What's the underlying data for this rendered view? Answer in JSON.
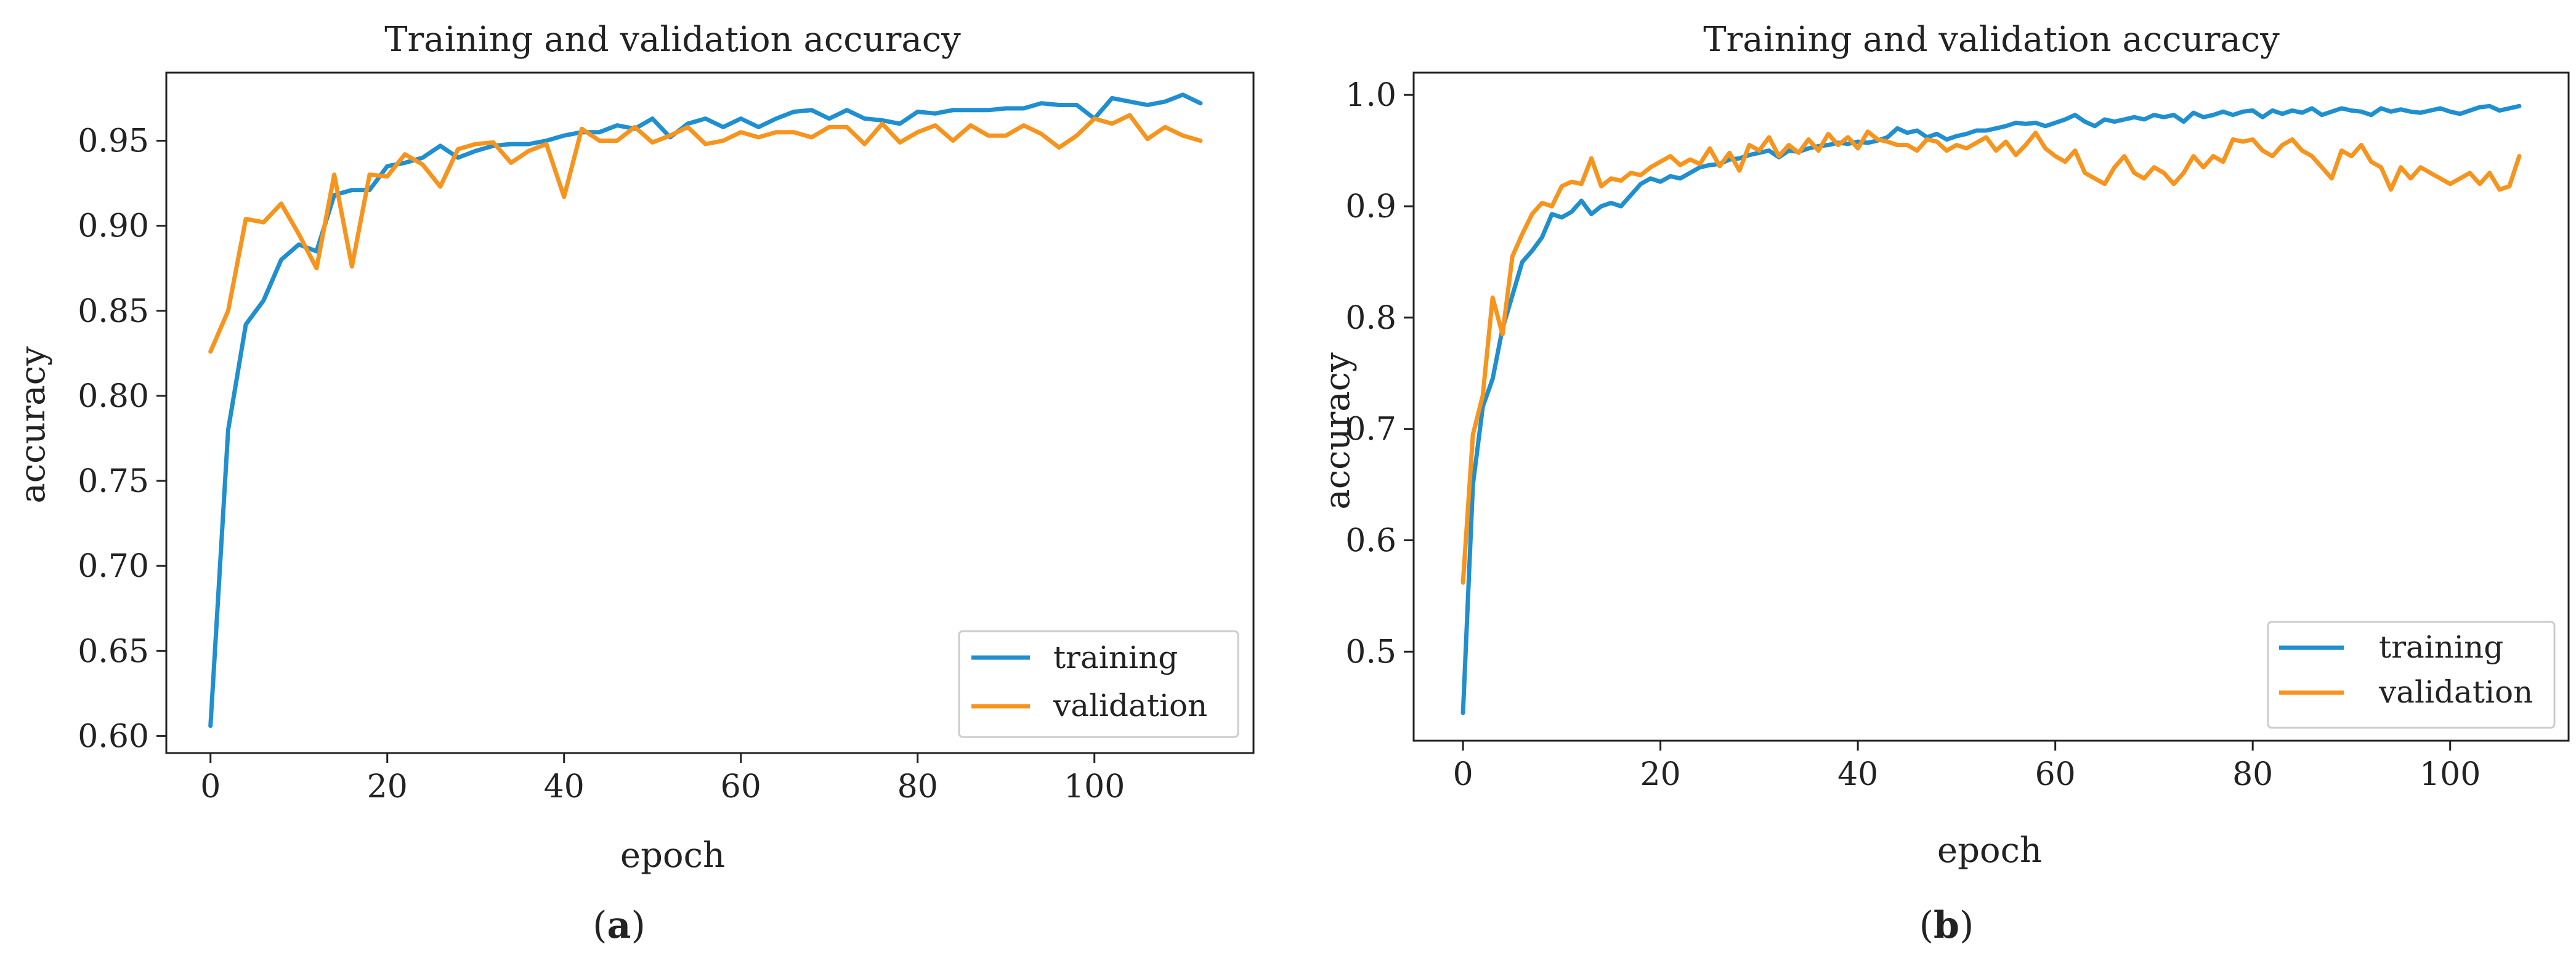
{
  "panels": [
    {
      "label_open": "(",
      "label_letter": "a",
      "label_close": ")",
      "chart_data": {
        "type": "line",
        "title": "Training and validation accuracy",
        "xlabel": "epoch",
        "ylabel": "accuracy",
        "xlim": [
          -5,
          118
        ],
        "ylim": [
          0.59,
          0.99
        ],
        "xticks": [
          0,
          20,
          40,
          60,
          80,
          100
        ],
        "xtick_labels": [
          "0",
          "20",
          "40",
          "60",
          "80",
          "100"
        ],
        "yticks": [
          0.6,
          0.65,
          0.7,
          0.75,
          0.8,
          0.85,
          0.9,
          0.95
        ],
        "ytick_labels": [
          "0.60",
          "0.65",
          "0.70",
          "0.75",
          "0.80",
          "0.85",
          "0.90",
          "0.95"
        ],
        "legend_position": "lower-right",
        "x": [
          0,
          2,
          4,
          6,
          8,
          10,
          12,
          14,
          16,
          18,
          20,
          22,
          24,
          26,
          28,
          30,
          32,
          34,
          36,
          38,
          40,
          42,
          44,
          46,
          48,
          50,
          52,
          54,
          56,
          58,
          60,
          62,
          64,
          66,
          68,
          70,
          72,
          74,
          76,
          78,
          80,
          82,
          84,
          86,
          88,
          90,
          92,
          94,
          96,
          98,
          100,
          102,
          104,
          106,
          108,
          110,
          112
        ],
        "series": [
          {
            "name": "training",
            "color": "#1f8fcf",
            "values": [
              0.606,
              0.78,
              0.842,
              0.856,
              0.88,
              0.889,
              0.885,
              0.918,
              0.921,
              0.921,
              0.935,
              0.937,
              0.94,
              0.947,
              0.94,
              0.944,
              0.947,
              0.948,
              0.948,
              0.95,
              0.953,
              0.955,
              0.955,
              0.959,
              0.957,
              0.963,
              0.952,
              0.96,
              0.963,
              0.958,
              0.963,
              0.958,
              0.963,
              0.967,
              0.968,
              0.963,
              0.968,
              0.963,
              0.962,
              0.96,
              0.967,
              0.966,
              0.968,
              0.968,
              0.968,
              0.969,
              0.969,
              0.972,
              0.971,
              0.971,
              0.963,
              0.975,
              0.973,
              0.971,
              0.973,
              0.977,
              0.972
            ]
          },
          {
            "name": "validation",
            "color": "#f7941d",
            "values": [
              0.826,
              0.85,
              0.904,
              0.902,
              0.913,
              0.895,
              0.875,
              0.93,
              0.876,
              0.93,
              0.929,
              0.942,
              0.936,
              0.923,
              0.945,
              0.948,
              0.949,
              0.937,
              0.944,
              0.948,
              0.917,
              0.957,
              0.95,
              0.95,
              0.958,
              0.949,
              0.953,
              0.958,
              0.948,
              0.95,
              0.955,
              0.952,
              0.955,
              0.955,
              0.952,
              0.958,
              0.958,
              0.948,
              0.96,
              0.949,
              0.955,
              0.959,
              0.95,
              0.959,
              0.953,
              0.953,
              0.959,
              0.954,
              0.946,
              0.953,
              0.963,
              0.96,
              0.965,
              0.951,
              0.958,
              0.953,
              0.95
            ]
          }
        ]
      }
    },
    {
      "label_open": "(",
      "label_letter": "b",
      "label_close": ")",
      "chart_data": {
        "type": "line",
        "title": "Training and validation accuracy",
        "xlabel": "epoch",
        "ylabel": "accuracy",
        "xlim": [
          -5,
          112
        ],
        "ylim": [
          0.42,
          1.02
        ],
        "xticks": [
          0,
          20,
          40,
          60,
          80,
          100
        ],
        "xtick_labels": [
          "0",
          "20",
          "40",
          "60",
          "80",
          "100"
        ],
        "yticks": [
          0.5,
          0.6,
          0.7,
          0.8,
          0.9,
          1.0
        ],
        "ytick_labels": [
          "0.5",
          "0.6",
          "0.7",
          "0.8",
          "0.9",
          "1.0"
        ],
        "legend_position": "lower-right",
        "x": [
          0,
          1,
          2,
          3,
          4,
          5,
          6,
          7,
          8,
          9,
          10,
          11,
          12,
          13,
          14,
          15,
          16,
          17,
          18,
          19,
          20,
          21,
          22,
          23,
          24,
          25,
          26,
          27,
          28,
          29,
          30,
          31,
          32,
          33,
          34,
          35,
          36,
          37,
          38,
          39,
          40,
          41,
          42,
          43,
          44,
          45,
          46,
          47,
          48,
          49,
          50,
          51,
          52,
          53,
          54,
          55,
          56,
          57,
          58,
          59,
          60,
          61,
          62,
          63,
          64,
          65,
          66,
          67,
          68,
          69,
          70,
          71,
          72,
          73,
          74,
          75,
          76,
          77,
          78,
          79,
          80,
          81,
          82,
          83,
          84,
          85,
          86,
          87,
          88,
          89,
          90,
          91,
          92,
          93,
          94,
          95,
          96,
          97,
          98,
          99,
          100,
          101,
          102,
          103,
          104,
          105,
          106,
          107
        ],
        "series": [
          {
            "name": "training",
            "color": "#1f8fcf",
            "values": [
              0.445,
              0.65,
              0.72,
              0.745,
              0.79,
              0.82,
              0.85,
              0.86,
              0.872,
              0.893,
              0.89,
              0.895,
              0.905,
              0.893,
              0.9,
              0.903,
              0.9,
              0.91,
              0.92,
              0.925,
              0.922,
              0.927,
              0.925,
              0.93,
              0.935,
              0.937,
              0.938,
              0.942,
              0.943,
              0.946,
              0.948,
              0.95,
              0.944,
              0.95,
              0.949,
              0.952,
              0.954,
              0.955,
              0.957,
              0.956,
              0.958,
              0.957,
              0.959,
              0.962,
              0.97,
              0.966,
              0.968,
              0.962,
              0.965,
              0.96,
              0.963,
              0.965,
              0.968,
              0.968,
              0.97,
              0.972,
              0.975,
              0.974,
              0.975,
              0.972,
              0.975,
              0.978,
              0.982,
              0.976,
              0.972,
              0.978,
              0.976,
              0.978,
              0.98,
              0.978,
              0.982,
              0.98,
              0.982,
              0.976,
              0.984,
              0.98,
              0.982,
              0.985,
              0.982,
              0.985,
              0.986,
              0.98,
              0.986,
              0.983,
              0.986,
              0.984,
              0.988,
              0.982,
              0.985,
              0.988,
              0.986,
              0.985,
              0.982,
              0.988,
              0.985,
              0.987,
              0.985,
              0.984,
              0.986,
              0.988,
              0.985,
              0.983,
              0.986,
              0.989,
              0.99,
              0.986,
              0.988,
              0.99
            ]
          },
          {
            "name": "validation",
            "color": "#f7941d",
            "values": [
              0.562,
              0.695,
              0.73,
              0.818,
              0.785,
              0.855,
              0.875,
              0.893,
              0.903,
              0.9,
              0.918,
              0.922,
              0.92,
              0.943,
              0.918,
              0.925,
              0.923,
              0.93,
              0.928,
              0.935,
              0.94,
              0.945,
              0.937,
              0.942,
              0.938,
              0.952,
              0.936,
              0.948,
              0.932,
              0.955,
              0.95,
              0.962,
              0.945,
              0.955,
              0.948,
              0.96,
              0.95,
              0.965,
              0.955,
              0.962,
              0.952,
              0.967,
              0.96,
              0.958,
              0.955,
              0.955,
              0.95,
              0.96,
              0.958,
              0.95,
              0.955,
              0.952,
              0.957,
              0.962,
              0.95,
              0.958,
              0.946,
              0.955,
              0.966,
              0.952,
              0.945,
              0.94,
              0.95,
              0.93,
              0.925,
              0.92,
              0.935,
              0.945,
              0.93,
              0.925,
              0.935,
              0.93,
              0.92,
              0.93,
              0.945,
              0.935,
              0.945,
              0.94,
              0.96,
              0.958,
              0.96,
              0.95,
              0.945,
              0.955,
              0.96,
              0.95,
              0.945,
              0.935,
              0.925,
              0.95,
              0.945,
              0.955,
              0.94,
              0.935,
              0.915,
              0.935,
              0.925,
              0.935,
              0.93,
              0.925,
              0.92,
              0.925,
              0.93,
              0.92,
              0.93,
              0.915,
              0.918,
              0.945
            ]
          }
        ]
      }
    }
  ]
}
